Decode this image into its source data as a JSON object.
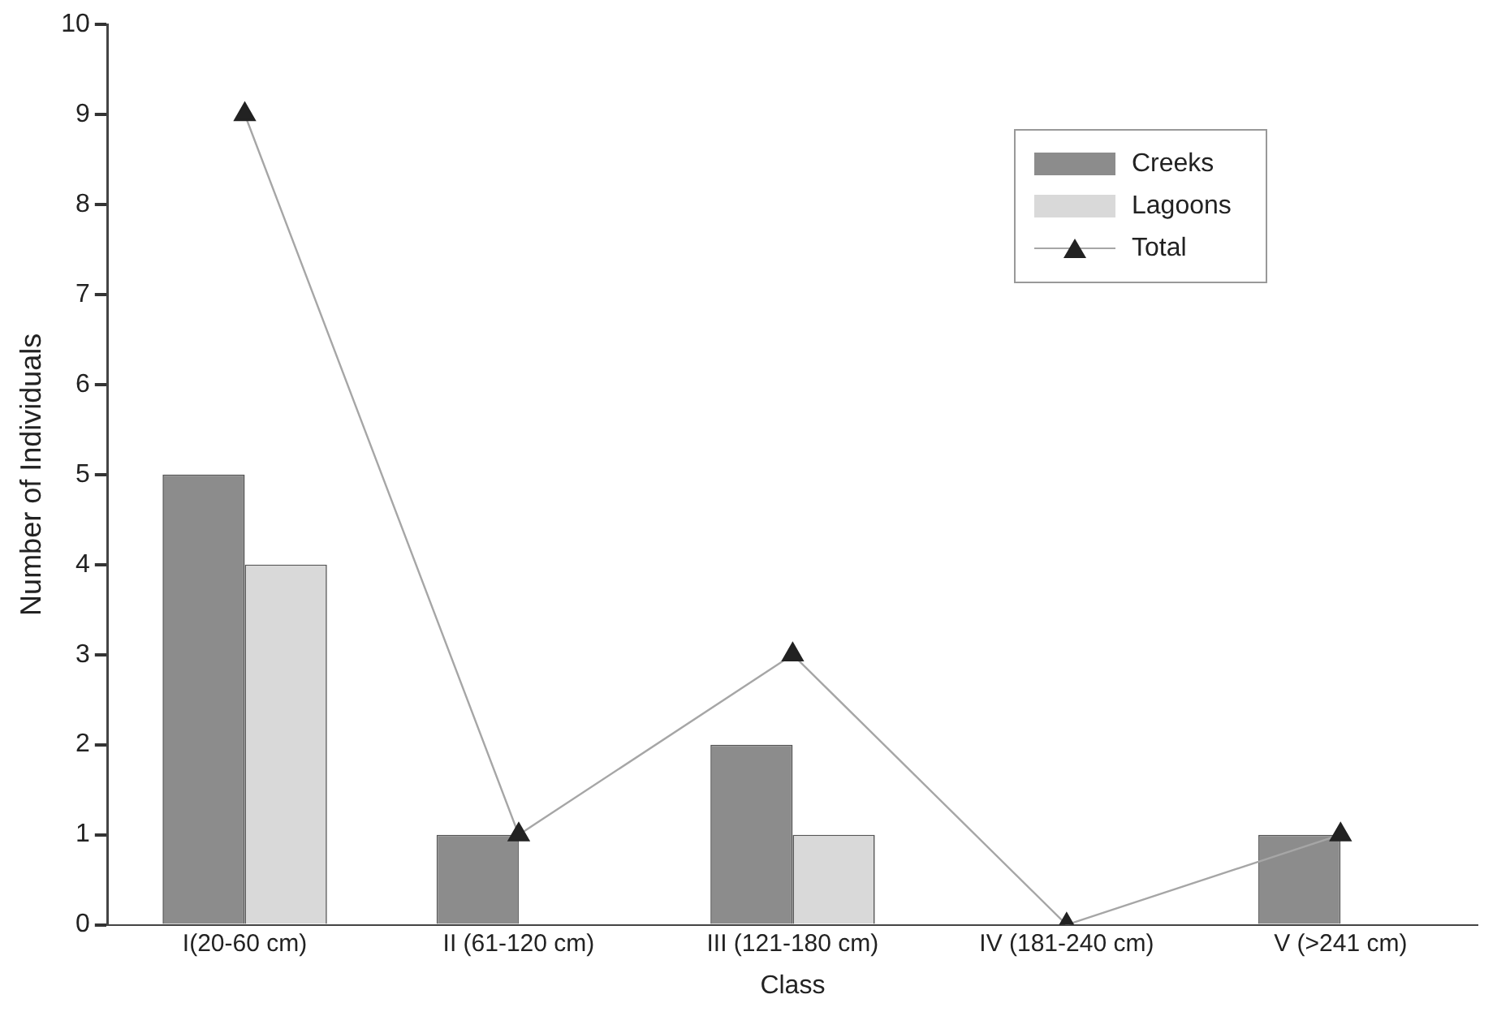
{
  "chart_data": {
    "type": "bar",
    "xlabel": "Class",
    "ylabel": "Number of Individuals",
    "categories": [
      "I(20-60 cm)",
      "II (61-120 cm)",
      "III (121-180 cm)",
      "IV (181-240 cm)",
      "V (>241 cm)"
    ],
    "series": [
      {
        "name": "Creeks",
        "color": "#8c8c8c",
        "values": [
          5,
          1,
          2,
          0,
          1
        ]
      },
      {
        "name": "Lagoons",
        "color": "#d9d9d9",
        "values": [
          4,
          0,
          1,
          0,
          0
        ]
      },
      {
        "name": "Total",
        "type": "line",
        "color": "#a6a6a6",
        "values": [
          9,
          1,
          3,
          0,
          1
        ]
      }
    ],
    "ylim": [
      0,
      10
    ],
    "yticks": [
      0,
      1,
      2,
      3,
      4,
      5,
      6,
      7,
      8,
      9,
      10
    ],
    "grid": false,
    "legend": "top right",
    "marker": "triangle",
    "line_style": "solid"
  }
}
